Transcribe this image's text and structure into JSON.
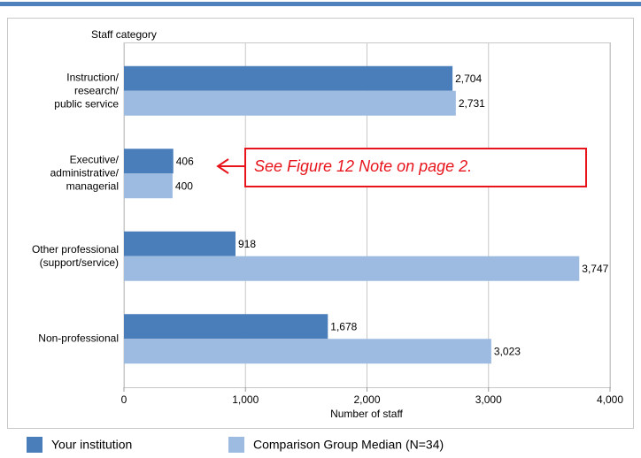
{
  "chart_data": {
    "type": "hbar",
    "y_axis_label": "Staff category",
    "x_axis_label": "Number of staff",
    "categories": [
      "Instruction/\nresearch/\npublic service",
      "Executive/\nadministrative/\nmanagerial",
      "Other professional\n(support/service)",
      "Non-professional"
    ],
    "series": [
      {
        "name": "Your institution",
        "color": "#4a7ebb",
        "values": [
          2704,
          406,
          918,
          1678
        ],
        "value_labels": [
          "2,704",
          "406",
          "918",
          "1,678"
        ]
      },
      {
        "name": "Comparison Group Median (N=34)",
        "color": "#9dbbe0",
        "values": [
          2731,
          400,
          3747,
          3023
        ],
        "value_labels": [
          "2,731",
          "400",
          "3,747",
          "3,023"
        ]
      }
    ],
    "xlim": [
      0,
      4000
    ],
    "xticks": [
      0,
      {
        "value": 1000,
        "label": "1,000"
      },
      {
        "value": 2000,
        "label": "2,000"
      },
      {
        "value": 3000,
        "label": "3,000"
      },
      {
        "value": 4000,
        "label": "4,000"
      }
    ],
    "grid": true,
    "annotation": "See Figure 12 Note on page 2."
  }
}
